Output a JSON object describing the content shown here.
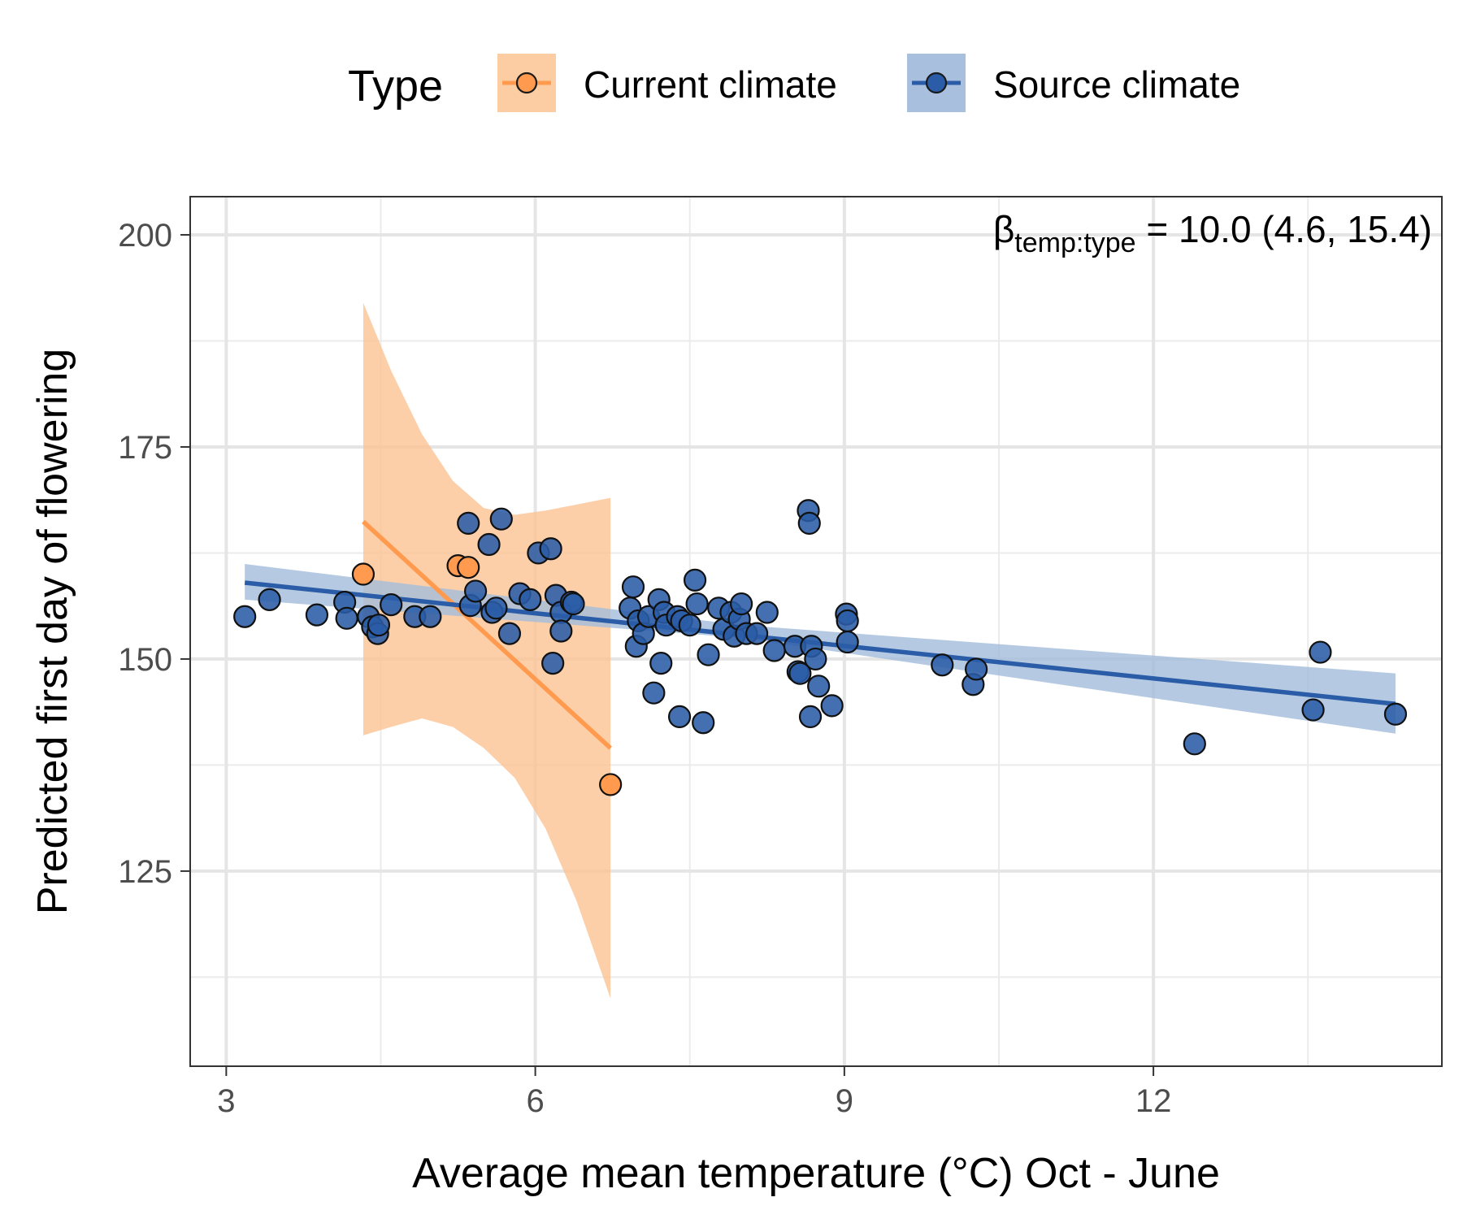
{
  "chart_data": {
    "type": "scatter",
    "xlabel": "Average mean temperature (°C) Oct - June",
    "ylabel": "Predicted first day of flowering",
    "xlim": [
      2.65,
      14.8
    ],
    "ylim": [
      102,
      204.5
    ],
    "xticks": [
      3,
      6,
      9,
      12
    ],
    "yticks": [
      125,
      150,
      175,
      200
    ],
    "x_tick_labels": [
      "3",
      "6",
      "9",
      "12"
    ],
    "y_tick_labels": [
      "125",
      "150",
      "175",
      "200"
    ],
    "grid": true,
    "legend": {
      "title": "Type",
      "position": "top",
      "items": [
        "Current climate",
        "Source climate"
      ]
    },
    "annotation": {
      "symbol": "β",
      "subscript": "temp:type",
      "text": " = 10.0 (4.6, 15.4)"
    },
    "series": [
      {
        "name": "Current climate",
        "color": "#ff9a4f",
        "ribbon_color": "#fbc393",
        "points": [
          [
            4.33,
            160.0
          ],
          [
            5.25,
            161.0
          ],
          [
            5.35,
            160.8
          ],
          [
            6.73,
            135.2
          ]
        ],
        "fit_line": [
          [
            4.33,
            166.2
          ],
          [
            6.73,
            139.5
          ]
        ],
        "ribbon": [
          [
            4.33,
            141.0,
            192.0
          ],
          [
            4.6,
            142.0,
            184.0
          ],
          [
            4.9,
            143.0,
            176.5
          ],
          [
            5.2,
            142.0,
            171.0
          ],
          [
            5.5,
            139.5,
            167.8
          ],
          [
            5.8,
            136.0,
            167.0
          ],
          [
            6.1,
            130.0,
            167.5
          ],
          [
            6.4,
            121.5,
            168.2
          ],
          [
            6.73,
            110.0,
            169.0
          ]
        ]
      },
      {
        "name": "Source climate",
        "color": "#2a5ca7",
        "ribbon_color": "#a3bddb",
        "points": [
          [
            3.18,
            155.0
          ],
          [
            3.42,
            157.0
          ],
          [
            3.88,
            155.2
          ],
          [
            4.15,
            156.7
          ],
          [
            4.17,
            154.8
          ],
          [
            4.38,
            155.0
          ],
          [
            4.42,
            153.8
          ],
          [
            4.47,
            153.0
          ],
          [
            4.48,
            154.0
          ],
          [
            4.6,
            156.4
          ],
          [
            4.83,
            155.0
          ],
          [
            4.98,
            155.0
          ],
          [
            5.35,
            166.0
          ],
          [
            5.37,
            156.3
          ],
          [
            5.42,
            158.0
          ],
          [
            5.55,
            163.5
          ],
          [
            5.58,
            155.5
          ],
          [
            5.62,
            156.0
          ],
          [
            5.67,
            166.5
          ],
          [
            5.75,
            153.0
          ],
          [
            5.85,
            157.7
          ],
          [
            5.95,
            157.0
          ],
          [
            6.03,
            162.5
          ],
          [
            6.15,
            163.0
          ],
          [
            6.17,
            149.5
          ],
          [
            6.2,
            157.5
          ],
          [
            6.25,
            155.5
          ],
          [
            6.25,
            153.3
          ],
          [
            6.35,
            156.7
          ],
          [
            6.37,
            156.5
          ],
          [
            6.92,
            156.0
          ],
          [
            6.95,
            158.5
          ],
          [
            6.98,
            151.5
          ],
          [
            7.0,
            154.5
          ],
          [
            7.05,
            153.0
          ],
          [
            7.1,
            155.0
          ],
          [
            7.15,
            146.0
          ],
          [
            7.2,
            157.0
          ],
          [
            7.22,
            149.5
          ],
          [
            7.25,
            155.5
          ],
          [
            7.27,
            154.0
          ],
          [
            7.38,
            155.0
          ],
          [
            7.4,
            143.2
          ],
          [
            7.42,
            154.5
          ],
          [
            7.5,
            154.0
          ],
          [
            7.55,
            159.3
          ],
          [
            7.57,
            156.5
          ],
          [
            7.63,
            142.5
          ],
          [
            7.68,
            150.5
          ],
          [
            7.78,
            156.0
          ],
          [
            7.83,
            153.5
          ],
          [
            7.9,
            155.5
          ],
          [
            7.93,
            152.7
          ],
          [
            7.98,
            154.7
          ],
          [
            8.0,
            156.5
          ],
          [
            8.05,
            153.0
          ],
          [
            8.15,
            153.0
          ],
          [
            8.25,
            155.5
          ],
          [
            8.32,
            151.0
          ],
          [
            8.52,
            151.5
          ],
          [
            8.55,
            148.5
          ],
          [
            8.57,
            148.3
          ],
          [
            8.65,
            167.5
          ],
          [
            8.66,
            166.0
          ],
          [
            8.67,
            143.2
          ],
          [
            8.68,
            151.5
          ],
          [
            8.72,
            150.0
          ],
          [
            8.75,
            146.8
          ],
          [
            8.88,
            144.5
          ],
          [
            9.02,
            155.3
          ],
          [
            9.03,
            154.5
          ],
          [
            9.03,
            152.0
          ],
          [
            9.95,
            149.3
          ],
          [
            10.25,
            147.0
          ],
          [
            10.28,
            148.8
          ],
          [
            12.4,
            140.0
          ],
          [
            13.55,
            144.0
          ],
          [
            13.62,
            150.8
          ],
          [
            14.35,
            143.5
          ]
        ],
        "fit_line": [
          [
            3.18,
            159.0
          ],
          [
            14.35,
            144.7
          ]
        ],
        "ribbon": [
          [
            3.18,
            157.0,
            161.2
          ],
          [
            8.0,
            152.5,
            154.0
          ],
          [
            14.35,
            141.2,
            148.3
          ]
        ]
      }
    ]
  }
}
